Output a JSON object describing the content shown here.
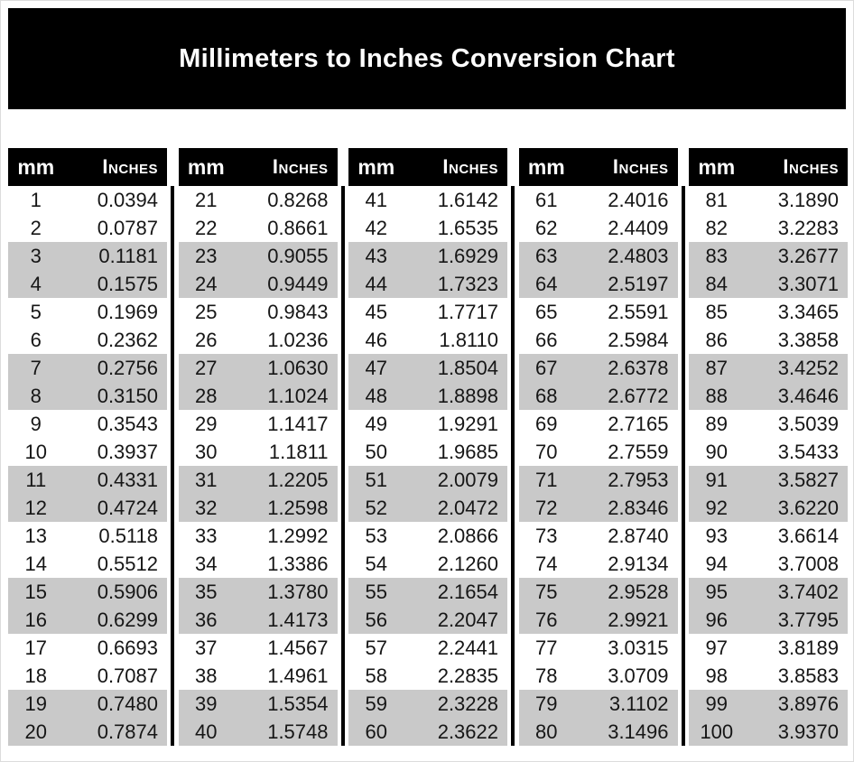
{
  "title": "Millimeters to Inches Conversion Chart",
  "colors": {
    "header_bg": "#000000",
    "header_text": "#ffffff",
    "stripe": "#c9c9c9",
    "body_text": "#161616",
    "divider": "#000000",
    "page_bg": "#ffffff"
  },
  "table": {
    "header_mm": "mm",
    "header_inches": "Inches",
    "columns_count": 5,
    "rows_per_column": 20
  },
  "chart_data": {
    "type": "table",
    "title": "Millimeters to Inches Conversion Chart",
    "columns": [
      "mm",
      "Inches"
    ],
    "layout": "5 column groups of 20 rows; gray stripe on row pairs 3-4, 7-8, 11-12, 15-16, 19-20 of each group",
    "rows": [
      [
        "1",
        "0.0394"
      ],
      [
        "2",
        "0.0787"
      ],
      [
        "3",
        "0.1181"
      ],
      [
        "4",
        "0.1575"
      ],
      [
        "5",
        "0.1969"
      ],
      [
        "6",
        "0.2362"
      ],
      [
        "7",
        "0.2756"
      ],
      [
        "8",
        "0.3150"
      ],
      [
        "9",
        "0.3543"
      ],
      [
        "10",
        "0.3937"
      ],
      [
        "11",
        "0.4331"
      ],
      [
        "12",
        "0.4724"
      ],
      [
        "13",
        "0.5118"
      ],
      [
        "14",
        "0.5512"
      ],
      [
        "15",
        "0.5906"
      ],
      [
        "16",
        "0.6299"
      ],
      [
        "17",
        "0.6693"
      ],
      [
        "18",
        "0.7087"
      ],
      [
        "19",
        "0.7480"
      ],
      [
        "20",
        "0.7874"
      ],
      [
        "21",
        "0.8268"
      ],
      [
        "22",
        "0.8661"
      ],
      [
        "23",
        "0.9055"
      ],
      [
        "24",
        "0.9449"
      ],
      [
        "25",
        "0.9843"
      ],
      [
        "26",
        "1.0236"
      ],
      [
        "27",
        "1.0630"
      ],
      [
        "28",
        "1.1024"
      ],
      [
        "29",
        "1.1417"
      ],
      [
        "30",
        "1.1811"
      ],
      [
        "31",
        "1.2205"
      ],
      [
        "32",
        "1.2598"
      ],
      [
        "33",
        "1.2992"
      ],
      [
        "34",
        "1.3386"
      ],
      [
        "35",
        "1.3780"
      ],
      [
        "36",
        "1.4173"
      ],
      [
        "37",
        "1.4567"
      ],
      [
        "38",
        "1.4961"
      ],
      [
        "39",
        "1.5354"
      ],
      [
        "40",
        "1.5748"
      ],
      [
        "41",
        "1.6142"
      ],
      [
        "42",
        "1.6535"
      ],
      [
        "43",
        "1.6929"
      ],
      [
        "44",
        "1.7323"
      ],
      [
        "45",
        "1.7717"
      ],
      [
        "46",
        "1.8110"
      ],
      [
        "47",
        "1.8504"
      ],
      [
        "48",
        "1.8898"
      ],
      [
        "49",
        "1.9291"
      ],
      [
        "50",
        "1.9685"
      ],
      [
        "51",
        "2.0079"
      ],
      [
        "52",
        "2.0472"
      ],
      [
        "53",
        "2.0866"
      ],
      [
        "54",
        "2.1260"
      ],
      [
        "55",
        "2.1654"
      ],
      [
        "56",
        "2.2047"
      ],
      [
        "57",
        "2.2441"
      ],
      [
        "58",
        "2.2835"
      ],
      [
        "59",
        "2.3228"
      ],
      [
        "60",
        "2.3622"
      ],
      [
        "61",
        "2.4016"
      ],
      [
        "62",
        "2.4409"
      ],
      [
        "63",
        "2.4803"
      ],
      [
        "64",
        "2.5197"
      ],
      [
        "65",
        "2.5591"
      ],
      [
        "66",
        "2.5984"
      ],
      [
        "67",
        "2.6378"
      ],
      [
        "68",
        "2.6772"
      ],
      [
        "69",
        "2.7165"
      ],
      [
        "70",
        "2.7559"
      ],
      [
        "71",
        "2.7953"
      ],
      [
        "72",
        "2.8346"
      ],
      [
        "73",
        "2.8740"
      ],
      [
        "74",
        "2.9134"
      ],
      [
        "75",
        "2.9528"
      ],
      [
        "76",
        "2.9921"
      ],
      [
        "77",
        "3.0315"
      ],
      [
        "78",
        "3.0709"
      ],
      [
        "79",
        "3.1102"
      ],
      [
        "80",
        "3.1496"
      ],
      [
        "81",
        "3.1890"
      ],
      [
        "82",
        "3.2283"
      ],
      [
        "83",
        "3.2677"
      ],
      [
        "84",
        "3.3071"
      ],
      [
        "85",
        "3.3465"
      ],
      [
        "86",
        "3.3858"
      ],
      [
        "87",
        "3.4252"
      ],
      [
        "88",
        "3.4646"
      ],
      [
        "89",
        "3.5039"
      ],
      [
        "90",
        "3.5433"
      ],
      [
        "91",
        "3.5827"
      ],
      [
        "92",
        "3.6220"
      ],
      [
        "93",
        "3.6614"
      ],
      [
        "94",
        "3.7008"
      ],
      [
        "95",
        "3.7402"
      ],
      [
        "96",
        "3.7795"
      ],
      [
        "97",
        "3.8189"
      ],
      [
        "98",
        "3.8583"
      ],
      [
        "99",
        "3.8976"
      ],
      [
        "100",
        "3.9370"
      ]
    ]
  }
}
